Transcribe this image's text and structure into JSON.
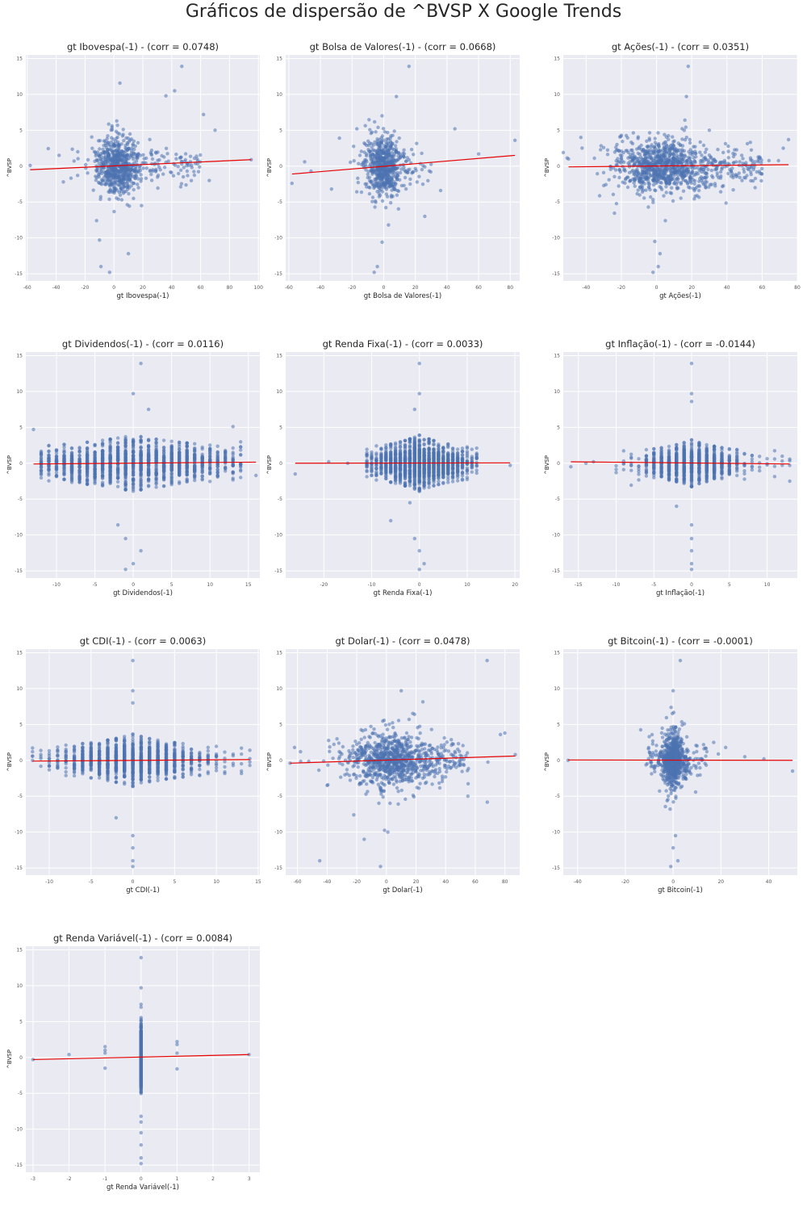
{
  "title": "Gráficos de dispersão de ^BVSP X Google Trends",
  "colors": {
    "background": "#eaeaf2",
    "grid": "#ffffff",
    "points": "#4c72b0",
    "line": "#e60000",
    "text": "#262626",
    "tick": "#555555"
  },
  "chart_data": [
    {
      "type": "scatter",
      "title": "gt Ibovespa(-1) - (corr = 0.0748)",
      "xlabel": "gt Ibovespa(-1)",
      "ylabel": "^BVSP",
      "xlim": [
        -61,
        101
      ],
      "ylim": [
        -16,
        15.5
      ],
      "xticks": [
        -60,
        -40,
        -20,
        0,
        20,
        40,
        60,
        80,
        100
      ],
      "yticks": [
        -15,
        -10,
        -5,
        0,
        5,
        10,
        15
      ],
      "regression": {
        "x": [
          -58,
          95
        ],
        "y": [
          -0.5,
          0.9
        ]
      },
      "cluster": {
        "style": "cloud",
        "x_center": 2,
        "x_spread": 7,
        "y_spread": 1.9,
        "count": 650
      },
      "tail": {
        "x_range": [
          15,
          60
        ],
        "y_spread": 1.1,
        "count": 90
      },
      "outliers": [
        [
          47,
          13.9
        ],
        [
          42,
          10.5
        ],
        [
          36,
          9.8
        ],
        [
          62,
          7.2
        ],
        [
          70,
          5
        ],
        [
          95,
          0.9
        ],
        [
          -58,
          0.1
        ],
        [
          -10,
          -10.3
        ],
        [
          -9,
          -14
        ],
        [
          -3,
          -14.8
        ],
        [
          10,
          -12.2
        ],
        [
          -12,
          -7.6
        ],
        [
          -35,
          -2.2
        ],
        [
          -25,
          2
        ],
        [
          -38,
          1.5
        ],
        [
          48,
          -1.5
        ],
        [
          66,
          -2
        ]
      ]
    },
    {
      "type": "scatter",
      "title": "gt Bolsa de Valores(-1) - (corr = 0.0668)",
      "xlabel": "gt Bolsa de Valores(-1)",
      "ylabel": "^BVSP",
      "xlim": [
        -62,
        86
      ],
      "ylim": [
        -16,
        15.5
      ],
      "xticks": [
        -60,
        -40,
        -20,
        0,
        20,
        40,
        60,
        80
      ],
      "yticks": [
        -15,
        -10,
        -5,
        0,
        5,
        10,
        15
      ],
      "regression": {
        "x": [
          -58,
          83
        ],
        "y": [
          -1.1,
          1.5
        ]
      },
      "cluster": {
        "style": "cloud",
        "x_center": 0,
        "x_spread": 5,
        "y_spread": 1.9,
        "count": 600
      },
      "tail": {
        "x_range": [
          8,
          30
        ],
        "y_spread": 1.2,
        "count": 35
      },
      "outliers": [
        [
          16,
          13.9
        ],
        [
          8,
          9.7
        ],
        [
          -28,
          3.9
        ],
        [
          45,
          5.2
        ],
        [
          60,
          1.7
        ],
        [
          83,
          3.6
        ],
        [
          -58,
          -2.4
        ],
        [
          -50,
          0.6
        ],
        [
          -46,
          -0.7
        ],
        [
          -33,
          -3.2
        ],
        [
          -1,
          -10.6
        ],
        [
          -4,
          -14
        ],
        [
          -6,
          -14.8
        ],
        [
          3,
          -8.2
        ],
        [
          26,
          -7
        ],
        [
          36,
          -3.4
        ],
        [
          -17,
          5.2
        ]
      ]
    },
    {
      "type": "scatter",
      "title": "gt Ações(-1) - (corr = 0.0351)",
      "xlabel": "gt Ações(-1)",
      "ylabel": "^BVSP",
      "xlim": [
        -53,
        80
      ],
      "ylim": [
        -16,
        15.5
      ],
      "xticks": [
        -40,
        -20,
        0,
        20,
        40,
        60,
        80
      ],
      "yticks": [
        -15,
        -10,
        -5,
        0,
        5,
        10,
        15
      ],
      "regression": {
        "x": [
          -50,
          75
        ],
        "y": [
          -0.1,
          0.2
        ]
      },
      "cluster": {
        "style": "cloud",
        "x_center": 4,
        "x_spread": 12,
        "y_spread": 1.7,
        "count": 900
      },
      "tail": {
        "x_range": [
          25,
          60
        ],
        "y_spread": 1.2,
        "count": 110
      },
      "outliers": [
        [
          18,
          13.9
        ],
        [
          17,
          9.7
        ],
        [
          -43,
          4
        ],
        [
          -50,
          1
        ],
        [
          72,
          2.5
        ],
        [
          75,
          3.7
        ],
        [
          56,
          0.6
        ],
        [
          -1,
          -10.5
        ],
        [
          1,
          -14
        ],
        [
          -2,
          -14.8
        ],
        [
          2,
          -12.2
        ],
        [
          5,
          -7.6
        ],
        [
          -30,
          -2.7
        ],
        [
          56,
          -3
        ],
        [
          -20,
          4.3
        ],
        [
          30,
          5
        ]
      ]
    },
    {
      "type": "scatter",
      "title": "gt Dividendos(-1) - (corr = 0.0116)",
      "xlabel": "gt Dividendos(-1)",
      "ylabel": "^BVSP",
      "xlim": [
        -14,
        16.5
      ],
      "ylim": [
        -16,
        15.5
      ],
      "xticks": [
        -10,
        -5,
        0,
        5,
        10,
        15
      ],
      "yticks": [
        -15,
        -10,
        -5,
        0,
        5,
        10,
        15
      ],
      "regression": {
        "x": [
          -13,
          16
        ],
        "y": [
          -0.1,
          0.15
        ]
      },
      "cluster": {
        "style": "columns",
        "x_min": -12,
        "x_max": 14,
        "y_base": 3,
        "x_decay": 7,
        "count": 1500
      },
      "outliers": [
        [
          -13,
          4.7
        ],
        [
          1,
          13.9
        ],
        [
          0,
          9.7
        ],
        [
          2,
          7.5
        ],
        [
          0,
          -14
        ],
        [
          -1,
          -14.8
        ],
        [
          1,
          -12.2
        ],
        [
          -1,
          -10.5
        ],
        [
          -2,
          -8.6
        ],
        [
          13,
          5.1
        ],
        [
          16,
          -1.7
        ]
      ]
    },
    {
      "type": "scatter",
      "title": "gt Renda Fixa(-1) - (corr = 0.0033)",
      "xlabel": "gt Renda Fixa(-1)",
      "ylabel": "^BVSP",
      "xlim": [
        -28,
        21
      ],
      "ylim": [
        -16,
        15.5
      ],
      "xticks": [
        -20,
        -10,
        0,
        10,
        20
      ],
      "yticks": [
        -15,
        -10,
        -5,
        0,
        5,
        10,
        15
      ],
      "regression": {
        "x": [
          -26,
          19
        ],
        "y": [
          0,
          0.05
        ]
      },
      "cluster": {
        "style": "columns",
        "x_min": -11,
        "x_max": 12,
        "y_base": 3,
        "x_decay": 5,
        "count": 1500
      },
      "outliers": [
        [
          -26,
          -1.5
        ],
        [
          -19,
          0.2
        ],
        [
          -15,
          0
        ],
        [
          19,
          -0.3
        ],
        [
          0,
          13.9
        ],
        [
          0,
          9.7
        ],
        [
          -1,
          7.5
        ],
        [
          0,
          -14.8
        ],
        [
          1,
          -14
        ],
        [
          0,
          -12.2
        ],
        [
          -1,
          -10.5
        ],
        [
          -6,
          -8
        ],
        [
          -2,
          -5.5
        ]
      ]
    },
    {
      "type": "scatter",
      "title": "gt Inflação(-1) - (corr = -0.0144)",
      "xlabel": "gt Inflação(-1)",
      "ylabel": "^BVSP",
      "xlim": [
        -17,
        14
      ],
      "ylim": [
        -16,
        15.5
      ],
      "xticks": [
        -15,
        -10,
        -5,
        0,
        5,
        10
      ],
      "yticks": [
        -15,
        -10,
        -5,
        0,
        5,
        10,
        15
      ],
      "regression": {
        "x": [
          -16,
          13
        ],
        "y": [
          0.2,
          -0.1
        ]
      },
      "cluster": {
        "style": "columns",
        "x_min": -10,
        "x_max": 13,
        "y_base": 2.5,
        "x_decay": 3,
        "count": 1000
      },
      "outliers": [
        [
          -16,
          -0.5
        ],
        [
          -13,
          0.2
        ],
        [
          -14,
          0
        ],
        [
          13,
          -2.5
        ],
        [
          0,
          13.9
        ],
        [
          0,
          9.7
        ],
        [
          0,
          8.6
        ],
        [
          0,
          -14.8
        ],
        [
          0,
          -14
        ],
        [
          0,
          -12.2
        ],
        [
          0,
          -10.5
        ],
        [
          0,
          -8.6
        ],
        [
          -2,
          -6
        ]
      ]
    },
    {
      "type": "scatter",
      "title": "gt CDI(-1) - (corr = 0.0063)",
      "xlabel": "gt CDI(-1)",
      "ylabel": "^BVSP",
      "xlim": [
        -12.8,
        15.2
      ],
      "ylim": [
        -16,
        15.5
      ],
      "xticks": [
        -10,
        -5,
        0,
        5,
        10,
        15
      ],
      "yticks": [
        -15,
        -10,
        -5,
        0,
        5,
        10,
        15
      ],
      "regression": {
        "x": [
          -12,
          14
        ],
        "y": [
          -0.1,
          0.1
        ]
      },
      "cluster": {
        "style": "columns",
        "x_min": -12,
        "x_max": 14,
        "y_base": 2.8,
        "x_decay": 4,
        "count": 1200
      },
      "outliers": [
        [
          0,
          13.9
        ],
        [
          0,
          9.7
        ],
        [
          0,
          8
        ],
        [
          0,
          -14.8
        ],
        [
          0,
          -14
        ],
        [
          0,
          -12.2
        ],
        [
          0,
          -10.5
        ],
        [
          -2,
          -8
        ],
        [
          -12,
          1.2
        ],
        [
          14,
          -0.7
        ]
      ]
    },
    {
      "type": "scatter",
      "title": "gt Dolar(-1) - (corr = 0.0478)",
      "xlabel": "gt Dolar(-1)",
      "ylabel": "^BVSP",
      "xlim": [
        -68,
        90
      ],
      "ylim": [
        -16,
        15.5
      ],
      "xticks": [
        -60,
        -40,
        -20,
        0,
        20,
        40,
        60,
        80
      ],
      "yticks": [
        -15,
        -10,
        -5,
        0,
        5,
        10,
        15
      ],
      "regression": {
        "x": [
          -65,
          87
        ],
        "y": [
          -0.4,
          0.6
        ]
      },
      "cluster": {
        "style": "cloud",
        "x_center": 3,
        "x_spread": 13,
        "y_spread": 1.8,
        "count": 850
      },
      "tail": {
        "x_range": [
          25,
          55
        ],
        "y_spread": 1.2,
        "count": 90
      },
      "outliers": [
        [
          68,
          13.9
        ],
        [
          10,
          9.7
        ],
        [
          77,
          3.6
        ],
        [
          80,
          3.8
        ],
        [
          87,
          0.8
        ],
        [
          -65,
          -0.4
        ],
        [
          -62,
          1.8
        ],
        [
          -58,
          1.2
        ],
        [
          -40,
          -3.5
        ],
        [
          -45,
          -14
        ],
        [
          -4,
          -14.8
        ],
        [
          -22,
          -7.6
        ],
        [
          1,
          -10
        ],
        [
          -15,
          -11
        ],
        [
          55,
          -5
        ]
      ]
    },
    {
      "type": "scatter",
      "title": "gt Bitcoin(-1) - (corr = -0.0001)",
      "xlabel": "gt Bitcoin(-1)",
      "ylabel": "^BVSP",
      "xlim": [
        -46,
        52
      ],
      "ylim": [
        -16,
        15.5
      ],
      "xticks": [
        -40,
        -20,
        0,
        20,
        40
      ],
      "yticks": [
        -15,
        -10,
        -5,
        0,
        5,
        10,
        15
      ],
      "regression": {
        "x": [
          -44,
          50
        ],
        "y": [
          0.05,
          0
        ]
      },
      "cluster": {
        "style": "cloud",
        "x_center": 0,
        "x_spread": 2.5,
        "y_spread": 1.8,
        "count": 750
      },
      "tail": {
        "x_range": [
          -12,
          15
        ],
        "y_spread": 0.9,
        "count": 50
      },
      "outliers": [
        [
          -44,
          0
        ],
        [
          50,
          -1.5
        ],
        [
          3,
          13.9
        ],
        [
          0,
          9.7
        ],
        [
          -1,
          -14.8
        ],
        [
          2,
          -14
        ],
        [
          0,
          -12.2
        ],
        [
          1,
          -10.5
        ],
        [
          -10,
          3.3
        ],
        [
          30,
          0.5
        ],
        [
          38,
          0.2
        ],
        [
          17,
          2.5
        ],
        [
          22,
          1.8
        ]
      ]
    },
    {
      "type": "scatter",
      "title": "gt Renda Variável(-1) - (corr = 0.0084)",
      "xlabel": "gt Renda Variável(-1)",
      "ylabel": "^BVSP",
      "xlim": [
        -3.2,
        3.3
      ],
      "ylim": [
        -16,
        15.5
      ],
      "xticks": [
        -3,
        -2,
        -1,
        0,
        1,
        2,
        3
      ],
      "yticks": [
        -15,
        -10,
        -5,
        0,
        5,
        10,
        15
      ],
      "regression": {
        "x": [
          -3,
          3
        ],
        "y": [
          -0.3,
          0.4
        ]
      },
      "cluster": {
        "style": "single",
        "x": 0,
        "y_spread": 1.9,
        "count": 900
      },
      "outliers": [
        [
          -3,
          -0.3
        ],
        [
          -2,
          0.4
        ],
        [
          -1,
          1.5
        ],
        [
          -1,
          1
        ],
        [
          -1,
          0.6
        ],
        [
          -1,
          -1.5
        ],
        [
          1,
          2.2
        ],
        [
          1,
          1.8
        ],
        [
          1,
          0.6
        ],
        [
          1,
          -1.6
        ],
        [
          3,
          0.4
        ],
        [
          0,
          13.9
        ],
        [
          0,
          9.7
        ],
        [
          0,
          7.4
        ],
        [
          0,
          7
        ],
        [
          0,
          -14.8
        ],
        [
          0,
          -14
        ],
        [
          0,
          -12.2
        ],
        [
          0,
          -10.5
        ],
        [
          0,
          -9
        ],
        [
          0,
          -8.2
        ]
      ]
    }
  ]
}
